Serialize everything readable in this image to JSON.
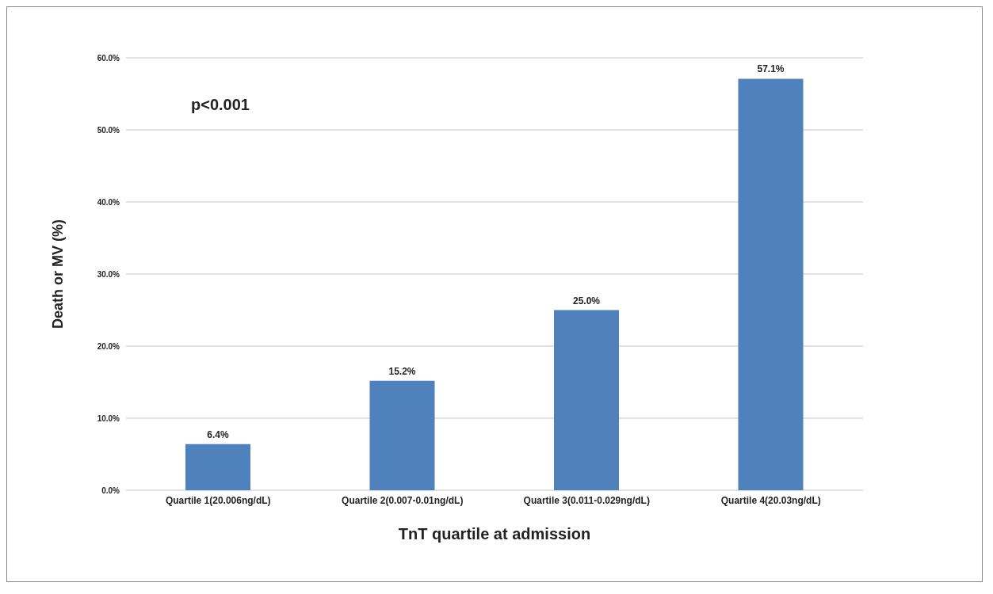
{
  "chart_data": {
    "type": "bar",
    "xlabel": "TnT quartile at admission",
    "ylabel": "Death or MV (%)",
    "categories": [
      "Quartile 1(20.006ng/dL)",
      "Quartile 2(0.007-0.01ng/dL)",
      "Quartile 3(0.011-0.029ng/dL)",
      "Quartile 4(20.03ng/dL)"
    ],
    "values": [
      6.4,
      15.2,
      25.0,
      57.1
    ],
    "color": "#4f81bd",
    "value_labels": [
      "6.4%",
      "15.2%",
      "25.0%",
      "57.1%"
    ],
    "ylim": [
      0,
      60
    ],
    "yticks": [
      {
        "value": 0,
        "label": "0.0%"
      },
      {
        "value": 10,
        "label": "10.0%"
      },
      {
        "value": 20,
        "label": "20.0%"
      },
      {
        "value": 30,
        "label": "30.0%"
      },
      {
        "value": 40,
        "label": "40.0%"
      },
      {
        "value": 50,
        "label": "50.0%"
      },
      {
        "value": 60,
        "label": "60.0%"
      }
    ],
    "grid": "y",
    "annotations": [
      "p<0.001"
    ]
  }
}
